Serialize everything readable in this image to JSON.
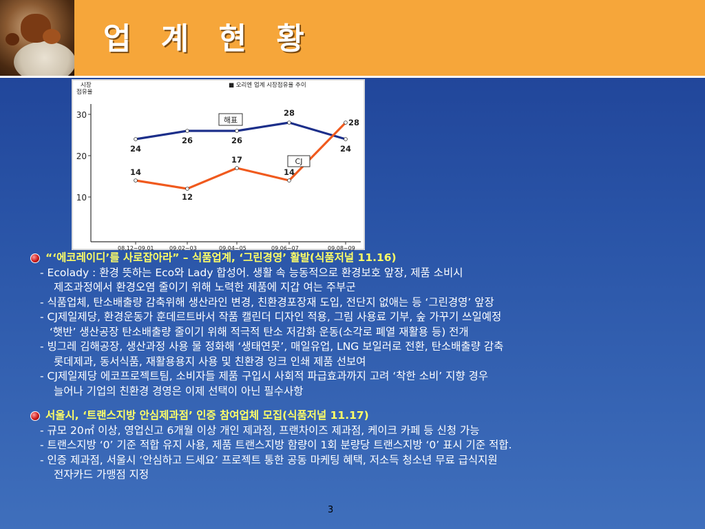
{
  "header": {
    "title": "업 계 현 황"
  },
  "chart_data": {
    "type": "line",
    "title": "■ 오리엔 업계 시장점유율 추이",
    "ylabel_line1": "시장",
    "ylabel_line2": "점유율",
    "categories": [
      "08.12~09.01",
      "09.02~03",
      "09.04~05",
      "09.06~07",
      "09.08~09"
    ],
    "yticks": [
      10,
      20,
      30
    ],
    "ylim": [
      0,
      32
    ],
    "series": [
      {
        "name": "해표",
        "values": [
          24,
          26,
          26,
          28,
          24
        ],
        "labels": [
          "24",
          "26",
          "26",
          "28",
          "24"
        ],
        "color": "#1c2f8a"
      },
      {
        "name": "CJ",
        "values": [
          14,
          12,
          17,
          14,
          28
        ],
        "labels": [
          "14",
          "12",
          "17",
          "14",
          "28"
        ],
        "color": "#f05a1e"
      }
    ],
    "grid": false
  },
  "sections": [
    {
      "heading": "“‘에코레이디’를 사로잡아라” – 식품업계, ‘그린경영’ 활발(식품저널 11.16)",
      "lines": [
        {
          "cls": "l1",
          "text": "- Ecolady : 환경 뜻하는 Eco와 Lady 합성어. 생활 속 능동적으로 환경보호 앞장, 제품 소비시"
        },
        {
          "cls": "l2",
          "text": "제조과정에서 환경오염 줄이기 위해 노력한 제품에 지갑 여는 주부군"
        },
        {
          "cls": "l1",
          "text": "- 식품업체, 탄소배출량 감축위해 생산라인 변경, 친환경포장재 도입, 전단지 없애는 등 ‘그린경영’ 앞장"
        },
        {
          "cls": "l1",
          "text": "- CJ제일제당, 환경운동가 훈데르트바서 작품 캘린더 디자인 적용, 그림 사용료 기부, 숲 가꾸기 쓰일예정"
        },
        {
          "cls": "l2b",
          "text": "‘햇반’ 생산공장 탄소배출량 줄이기 위해 적극적 탄소 저감화 운동(소각로 폐열 재활용 등) 전개"
        },
        {
          "cls": "l1",
          "text": "- 빙그레 김해공장, 생산과정 사용 물 정화해 ‘생태연못’, 매일유업, LNG 보일러로 전환, 탄소배출량 감축"
        },
        {
          "cls": "l2",
          "text": "롯데제과, 동서식품, 재활용용지 사용 및 친환경 잉크 인쇄 제품 선보여"
        },
        {
          "cls": "l1",
          "text": "- CJ제일제당 에코프로젝트팀, 소비자들 제품 구입시 사회적 파급효과까지 고려 ‘착한 소비’ 지향 경우"
        },
        {
          "cls": "l2",
          "text": "늘어나 기업의 친환경 경영은 이제 선택이 아닌 필수사항"
        }
      ]
    },
    {
      "heading": "서울시, ‘트랜스지방 안심제과점’ 인증 참여업체 모집(식품저널 11.17)",
      "lines": [
        {
          "cls": "l1",
          "text": "- 규모 20㎡ 이상, 영업신고 6개월 이상 개인 제과점, 프랜차이즈 제과점, 케이크 카페 등 신청 가능"
        },
        {
          "cls": "l1",
          "text": "- 트랜스지방 ‘0’ 기준 적합 유지 사용, 제품 트랜스지방 함량이 1회 분량당 트랜스지방 ‘0’ 표시 기준 적합."
        },
        {
          "cls": "l1",
          "text": "- 인증 제과점, 서울시 ‘안심하고 드세요’ 프로젝트 통한 공동 마케팅 혜택, 저소득 청소년 무료 급식지원"
        },
        {
          "cls": "l2",
          "text": "전자카드 가맹점 지정"
        }
      ]
    }
  ],
  "footer": {
    "page_number": "3"
  }
}
